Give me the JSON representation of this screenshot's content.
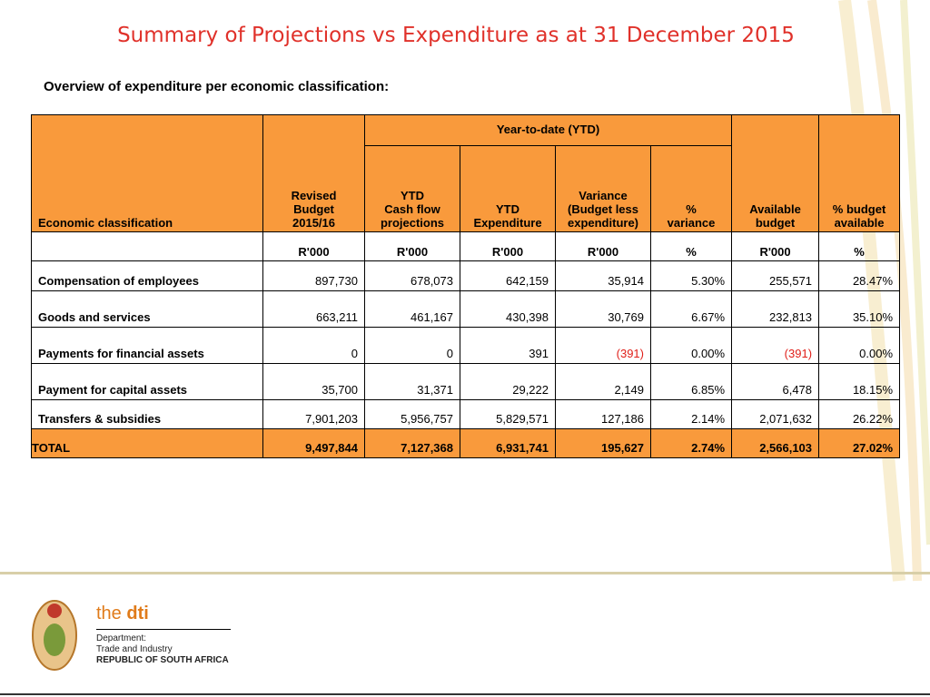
{
  "title": "Summary of Projections vs Expenditure as at 31 December 2015",
  "subtitle": "Overview of expenditure per economic classification:",
  "table": {
    "group_header": "Year-to-date (YTD)",
    "headers": [
      [
        "Economic  classification"
      ],
      [
        "Revised",
        "Budget",
        "2015/16"
      ],
      [
        "YTD",
        "Cash flow",
        "projections"
      ],
      [
        "YTD",
        "Expenditure"
      ],
      [
        "Variance",
        "(Budget less",
        "expenditure)"
      ],
      [
        "%",
        "variance"
      ],
      [
        "Available",
        "budget"
      ],
      [
        "% budget",
        "available"
      ]
    ],
    "units": [
      "R'000",
      "R'000",
      "R'000",
      "R'000",
      "%",
      "R'000",
      "%"
    ],
    "rows": [
      [
        "Compensation of employees",
        "897,730",
        "678,073",
        "642,159",
        "35,914",
        "5.30%",
        "255,571",
        "28.47%"
      ],
      [
        "Goods and services",
        "663,211",
        "461,167",
        "430,398",
        "30,769",
        "6.67%",
        "232,813",
        "35.10%"
      ],
      [
        "Payments for financial assets",
        "0",
        "0",
        "391",
        "(391)",
        "0.00%",
        "(391)",
        "0.00%"
      ],
      [
        "Payment for capital assets",
        "35,700",
        "31,371",
        "29,222",
        "2,149",
        "6.85%",
        "6,478",
        "18.15%"
      ],
      [
        "Transfers & subsidies",
        "7,901,203",
        "5,956,757",
        "5,829,571",
        "127,186",
        "2.14%",
        "2,071,632",
        "26.22%"
      ]
    ],
    "total": [
      "TOTAL",
      "9,497,844",
      "7,127,368",
      "6,931,741",
      "195,627",
      "2.74%",
      "2,566,103",
      "27.02%"
    ]
  },
  "footer": {
    "brand_prefix": "the ",
    "brand": "dti",
    "lines": [
      "Department:",
      "Trade and Industry",
      "REPUBLIC OF SOUTH AFRICA"
    ]
  }
}
